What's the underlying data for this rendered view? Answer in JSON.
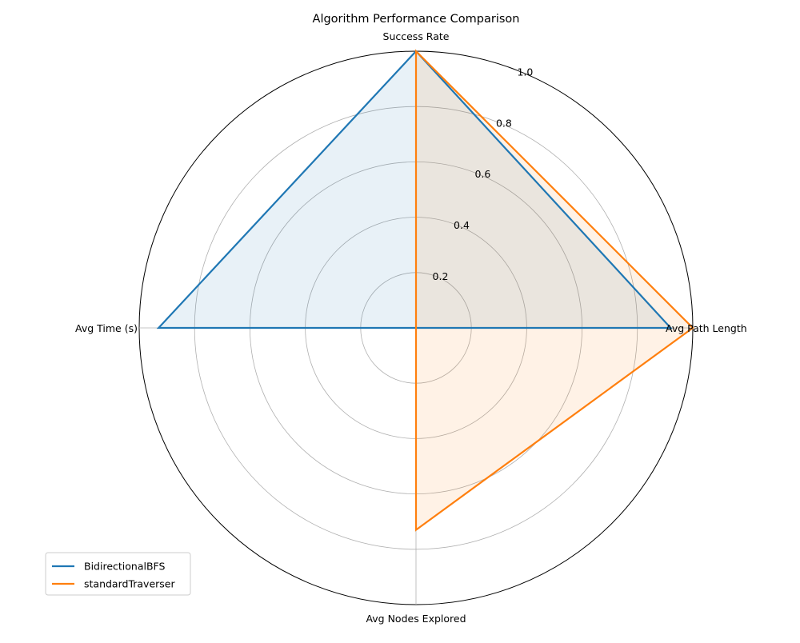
{
  "chart_data": {
    "type": "radar",
    "title": "Algorithm Performance Comparison",
    "axes": [
      "Success Rate",
      "Avg Path Length",
      "Avg Nodes Explored",
      "Avg Time (s)"
    ],
    "radial_ticks": [
      "0.2",
      "0.4",
      "0.6",
      "0.8",
      "1.0"
    ],
    "radial_tick_values": [
      0.2,
      0.4,
      0.6,
      0.8,
      1.0
    ],
    "rlim": [
      0,
      1.0
    ],
    "grid": true,
    "legend_position": "lower-left",
    "series": [
      {
        "name": "BidirectionalBFS",
        "color": "#1f77b4",
        "values": [
          1.0,
          0.92,
          0.0,
          0.93
        ]
      },
      {
        "name": "standardTraverser",
        "color": "#ff7f0e",
        "values": [
          1.0,
          1.0,
          0.73,
          0.0
        ]
      }
    ]
  }
}
